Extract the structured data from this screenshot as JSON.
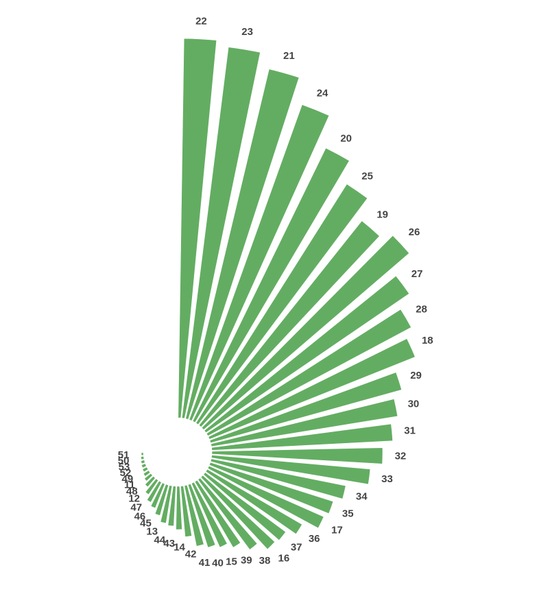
{
  "chart_data": {
    "type": "bar",
    "layout": "radial",
    "bar_color": "#63ad62",
    "label_color": "#444444",
    "categories": [
      "22",
      "23",
      "21",
      "24",
      "20",
      "25",
      "19",
      "26",
      "27",
      "28",
      "18",
      "29",
      "30",
      "31",
      "32",
      "33",
      "34",
      "35",
      "17",
      "36",
      "37",
      "16",
      "38",
      "39",
      "15",
      "40",
      "41",
      "42",
      "14",
      "43",
      "44",
      "13",
      "45",
      "46",
      "47",
      "12",
      "48",
      "11",
      "49",
      "52",
      "53",
      "50",
      "51"
    ],
    "values": [
      553,
      545,
      524,
      488,
      443,
      412,
      381,
      395,
      359,
      336,
      323,
      289,
      275,
      264,
      249,
      232,
      200,
      188,
      183,
      160,
      146,
      143,
      127,
      111,
      102,
      96,
      90,
      74,
      63,
      58,
      55,
      46,
      38,
      33,
      25,
      17,
      12,
      9,
      7,
      6,
      5,
      4,
      3
    ]
  }
}
